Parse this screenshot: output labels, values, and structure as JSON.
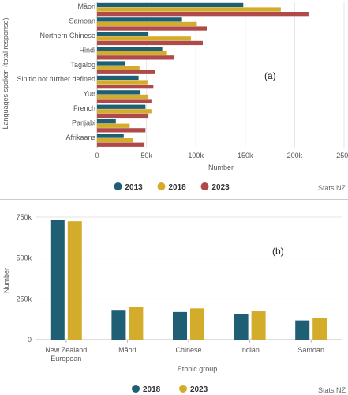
{
  "chart_data": [
    {
      "type": "bar",
      "orientation": "horizontal",
      "annotation": "(a)",
      "categories": [
        "Māori",
        "Samoan",
        "Northern Chinese",
        "Hindi",
        "Tagalog",
        "Sinitic not further defined",
        "Yue",
        "French",
        "Panjabi",
        "Afrikaans"
      ],
      "series": [
        {
          "name": "2013",
          "color": "#1f5f73",
          "values": [
            148000,
            86000,
            52000,
            66000,
            28000,
            42000,
            44000,
            49000,
            19000,
            27000
          ]
        },
        {
          "name": "2018",
          "color": "#d4ac2b",
          "values": [
            186000,
            101000,
            95000,
            70000,
            43000,
            51000,
            52000,
            55000,
            33000,
            36000
          ]
        },
        {
          "name": "2023",
          "color": "#b04a4a",
          "values": [
            214000,
            111000,
            107000,
            78000,
            59000,
            57000,
            55000,
            52000,
            49000,
            48000
          ]
        }
      ],
      "xlabel": "Number",
      "ylabel": "Languages spoken (total response)",
      "xlim": [
        0,
        250000
      ],
      "xticks": [
        "0",
        "50k",
        "100k",
        "150k",
        "200k",
        "250k"
      ],
      "grid": true,
      "legend": "bottom",
      "credit": "Stats NZ"
    },
    {
      "type": "bar",
      "orientation": "vertical",
      "annotation": "(b)",
      "categories": [
        "New Zealand European",
        "Māori",
        "Chinese",
        "Indian",
        "Samoan"
      ],
      "series": [
        {
          "name": "2018",
          "color": "#1f5f73",
          "values": [
            735000,
            178000,
            170000,
            155000,
            118000
          ]
        },
        {
          "name": "2023",
          "color": "#d4ac2b",
          "values": [
            725000,
            202000,
            192000,
            174000,
            131000
          ]
        }
      ],
      "xlabel": "Ethnic group",
      "ylabel": "Number",
      "ylim": [
        0,
        750000
      ],
      "yticks": [
        "0",
        "250k",
        "500k",
        "750k"
      ],
      "grid": true,
      "legend": "bottom",
      "credit": "Stats NZ"
    }
  ]
}
